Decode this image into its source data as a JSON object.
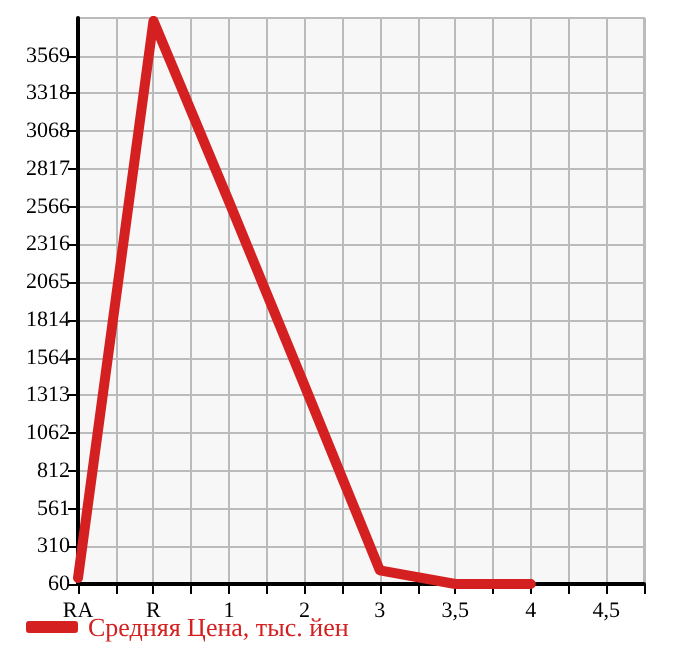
{
  "chart_data": {
    "type": "line",
    "categories": [
      "RA",
      "R",
      "1",
      "2",
      "3",
      "3,5",
      "4",
      "4,5"
    ],
    "series": [
      {
        "name": "Средняя Цена, тыс. йен",
        "color": "#d42020",
        "values": [
          100,
          3800,
          2600,
          1380,
          150,
          60,
          60,
          null
        ]
      }
    ],
    "ylim": [
      60,
      3819
    ],
    "yticks": [
      60,
      310,
      561,
      812,
      1062,
      1313,
      1564,
      1814,
      2065,
      2316,
      2566,
      2817,
      3068,
      3318,
      3569
    ],
    "grid": true,
    "legend": "bottom left",
    "marker": "none",
    "line_style": "solid"
  }
}
